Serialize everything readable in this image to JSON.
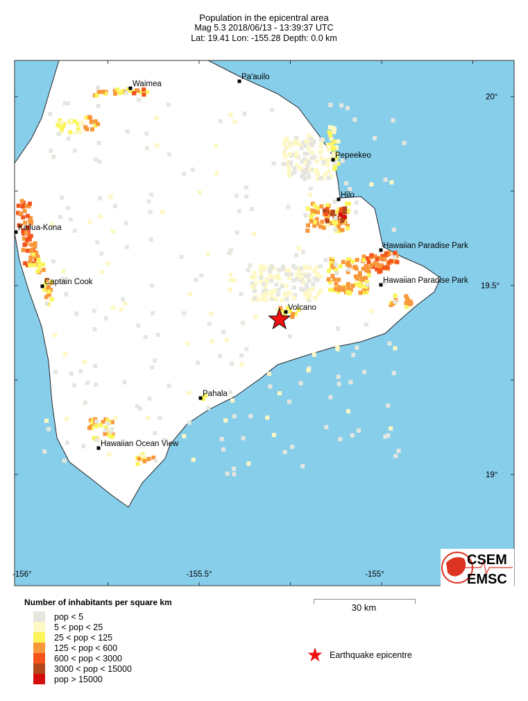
{
  "header": {
    "title": "Population in the epicentral area",
    "line2": "Mag 5.3  2018/06/13 - 13:39:37 UTC",
    "line3": "Lat: 19.41    Lon: -155.28     Depth:  0.0 km"
  },
  "map": {
    "ocean_color": "#87ceeb",
    "land_color": "#ffffff",
    "lon_labels": [
      "-156°",
      "-155.5°",
      "-155°"
    ],
    "lat_labels": [
      "20°",
      "19.5°",
      "19°"
    ],
    "epicentre": {
      "lat": 19.41,
      "lon": -155.28,
      "color": "#ee1111"
    },
    "places": [
      {
        "name": "Waimea"
      },
      {
        "name": "Pa'auilo"
      },
      {
        "name": "Pepeekeo"
      },
      {
        "name": "Hilo"
      },
      {
        "name": "Kailua-Kona"
      },
      {
        "name": "Hawaiian Paradise Park"
      },
      {
        "name": "Hawaiian Paradise Park"
      },
      {
        "name": "Captain Cook"
      },
      {
        "name": "Volcano"
      },
      {
        "name": "Pahala"
      },
      {
        "name": "Hawaiian Ocean View"
      }
    ]
  },
  "legend": {
    "title": "Number of inhabitants per square km",
    "classes": [
      {
        "label": "pop < 5",
        "color": "#e6e6e0"
      },
      {
        "label": "5 < pop < 25",
        "color": "#fdf8c4"
      },
      {
        "label": "25 < pop < 125",
        "color": "#fbf55a"
      },
      {
        "label": "125 < pop < 600",
        "color": "#f9983a"
      },
      {
        "label": "600 < pop < 3000",
        "color": "#f4541a"
      },
      {
        "label": "3000 < pop < 15000",
        "color": "#b4461c"
      },
      {
        "label": "pop > 15000",
        "color": "#d40c0c"
      }
    ],
    "scale_label": "30 km",
    "epicentre_label": "Earthquake epicentre"
  },
  "logo": {
    "top": "CSEM",
    "bottom": "EMSC"
  }
}
